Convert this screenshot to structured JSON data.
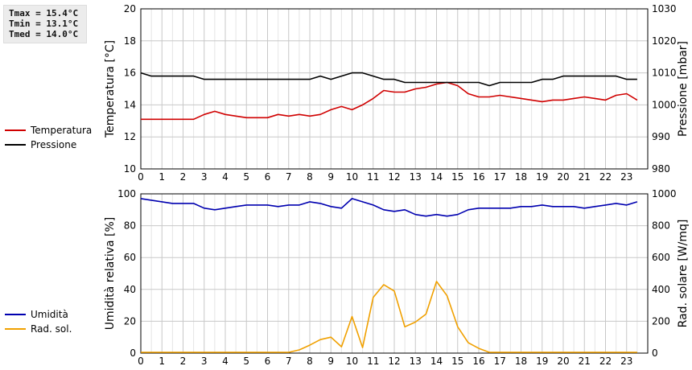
{
  "stats": {
    "tmax": "Tmax = 15.4°C",
    "tmin": "Tmin = 13.1°C",
    "tmed": "Tmed = 14.0°C"
  },
  "colors": {
    "temperature": "#d00000",
    "pressure": "#000000",
    "humidity": "#0000b0",
    "solar": "#f0a000",
    "grid": "#c8c8c8"
  },
  "chart_data": [
    {
      "type": "line",
      "legend_position": "left",
      "grid": true,
      "x_ticks": [
        0,
        1,
        2,
        3,
        4,
        5,
        6,
        7,
        8,
        9,
        10,
        11,
        12,
        13,
        14,
        15,
        16,
        17,
        18,
        19,
        20,
        21,
        22,
        23
      ],
      "xlim": [
        0,
        24
      ],
      "y_left": {
        "label": "Temperatura [°C]",
        "ylim": [
          10,
          20
        ],
        "ticks": [
          10,
          12,
          14,
          16,
          18,
          20
        ]
      },
      "y_right": {
        "label": "Pressione [mbar]",
        "ylim": [
          980,
          1030
        ],
        "ticks": [
          980,
          990,
          1000,
          1010,
          1020,
          1030
        ]
      },
      "series": [
        {
          "name": "Temperatura",
          "axis": "left",
          "color_key": "temperature",
          "x": [
            0,
            0.5,
            1,
            1.5,
            2,
            2.5,
            3,
            3.5,
            4,
            4.5,
            5,
            5.5,
            6,
            6.5,
            7,
            7.5,
            8,
            8.5,
            9,
            9.5,
            10,
            10.5,
            11,
            11.5,
            12,
            12.5,
            13,
            13.5,
            14,
            14.5,
            15,
            15.5,
            16,
            16.5,
            17,
            17.5,
            18,
            18.5,
            19,
            19.5,
            20,
            20.5,
            21,
            21.5,
            22,
            22.5,
            23,
            23.5
          ],
          "values": [
            13.1,
            13.1,
            13.1,
            13.1,
            13.1,
            13.1,
            13.4,
            13.6,
            13.4,
            13.3,
            13.2,
            13.2,
            13.2,
            13.4,
            13.3,
            13.4,
            13.3,
            13.4,
            13.7,
            13.9,
            13.7,
            14.0,
            14.4,
            14.9,
            14.8,
            14.8,
            15.0,
            15.1,
            15.3,
            15.4,
            15.2,
            14.7,
            14.5,
            14.5,
            14.6,
            14.5,
            14.4,
            14.3,
            14.2,
            14.3,
            14.3,
            14.4,
            14.5,
            14.4,
            14.3,
            14.6,
            14.7,
            14.3
          ]
        },
        {
          "name": "Pressione",
          "axis": "right",
          "color_key": "pressure",
          "x": [
            0,
            0.5,
            1,
            1.5,
            2,
            2.5,
            3,
            3.5,
            4,
            4.5,
            5,
            5.5,
            6,
            6.5,
            7,
            7.5,
            8,
            8.5,
            9,
            9.5,
            10,
            10.5,
            11,
            11.5,
            12,
            12.5,
            13,
            13.5,
            14,
            14.5,
            15,
            15.5,
            16,
            16.5,
            17,
            17.5,
            18,
            18.5,
            19,
            19.5,
            20,
            20.5,
            21,
            21.5,
            22,
            22.5,
            23,
            23.5
          ],
          "values": [
            1010,
            1009,
            1009,
            1009,
            1009,
            1009,
            1008,
            1008,
            1008,
            1008,
            1008,
            1008,
            1008,
            1008,
            1008,
            1008,
            1008,
            1009,
            1008,
            1009,
            1010,
            1010,
            1009,
            1008,
            1008,
            1007,
            1007,
            1007,
            1007,
            1007,
            1007,
            1007,
            1007,
            1006,
            1007,
            1007,
            1007,
            1007,
            1008,
            1008,
            1009,
            1009,
            1009,
            1009,
            1009,
            1009,
            1008,
            1008
          ]
        }
      ]
    },
    {
      "type": "line",
      "legend_position": "left",
      "grid": true,
      "x_ticks": [
        0,
        1,
        2,
        3,
        4,
        5,
        6,
        7,
        8,
        9,
        10,
        11,
        12,
        13,
        14,
        15,
        16,
        17,
        18,
        19,
        20,
        21,
        22,
        23
      ],
      "xlim": [
        0,
        24
      ],
      "y_left": {
        "label": "Umidità relativa [%]",
        "ylim": [
          0,
          100
        ],
        "ticks": [
          0,
          20,
          40,
          60,
          80,
          100
        ]
      },
      "y_right": {
        "label": "Rad. solare [W/mq]",
        "ylim": [
          0,
          1000
        ],
        "ticks": [
          0,
          200,
          400,
          600,
          800,
          1000
        ]
      },
      "series": [
        {
          "name": "Umidità",
          "axis": "left",
          "color_key": "humidity",
          "x": [
            0,
            0.5,
            1,
            1.5,
            2,
            2.5,
            3,
            3.5,
            4,
            4.5,
            5,
            5.5,
            6,
            6.5,
            7,
            7.5,
            8,
            8.5,
            9,
            9.5,
            10,
            10.5,
            11,
            11.5,
            12,
            12.5,
            13,
            13.5,
            14,
            14.5,
            15,
            15.5,
            16,
            16.5,
            17,
            17.5,
            18,
            18.5,
            19,
            19.5,
            20,
            20.5,
            21,
            21.5,
            22,
            22.5,
            23,
            23.5
          ],
          "values": [
            97,
            96,
            95,
            94,
            94,
            94,
            91,
            90,
            91,
            92,
            93,
            93,
            93,
            92,
            93,
            93,
            95,
            94,
            92,
            91,
            97,
            95,
            93,
            90,
            89,
            90,
            87,
            86,
            87,
            86,
            87,
            90,
            91,
            91,
            91,
            91,
            92,
            92,
            93,
            92,
            92,
            92,
            91,
            92,
            93,
            94,
            93,
            95
          ]
        },
        {
          "name": "Rad. sol.",
          "axis": "right",
          "color_key": "solar",
          "x": [
            0,
            1,
            2,
            3,
            4,
            5,
            6,
            7,
            7.5,
            8,
            8.5,
            9,
            9.5,
            10,
            10.5,
            11,
            11.5,
            12,
            12.5,
            13,
            13.5,
            14,
            14.5,
            15,
            15.5,
            16,
            16.5,
            17,
            18,
            19,
            20,
            21,
            22,
            23,
            23.5
          ],
          "values": [
            5,
            5,
            5,
            5,
            5,
            5,
            5,
            5,
            20,
            50,
            85,
            100,
            40,
            230,
            35,
            350,
            430,
            390,
            165,
            195,
            245,
            450,
            360,
            165,
            65,
            30,
            5,
            5,
            5,
            5,
            5,
            5,
            5,
            5,
            5
          ]
        }
      ]
    }
  ],
  "legend_top": [
    {
      "label": "Temperatura",
      "color_key": "temperature"
    },
    {
      "label": "Pressione",
      "color_key": "pressure"
    }
  ],
  "legend_bottom": [
    {
      "label": "Umidità",
      "color_key": "humidity"
    },
    {
      "label": "Rad. sol.",
      "color_key": "solar"
    }
  ]
}
